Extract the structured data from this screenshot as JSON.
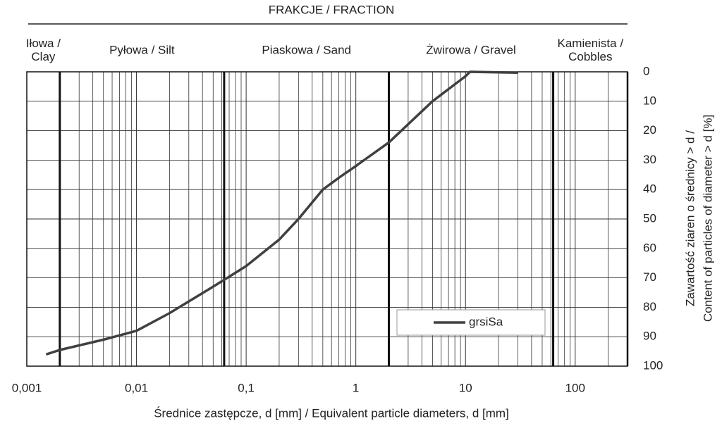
{
  "chart_data": {
    "type": "line",
    "title": "FRAKCJE / FRACTION",
    "xlabel": "Średnice zastępcze, d [mm] / Equivalent particle diameters, d [mm]",
    "ylabel": [
      "Zawartość ziaren o średnicy > d /",
      "Content of particles of diameter > d [%]"
    ],
    "fractions": [
      {
        "lines": [
          "Iłowa /",
          "Clay"
        ],
        "from": 0.001,
        "to": 0.002
      },
      {
        "lines": [
          "Pyłowa / Silt"
        ],
        "from": 0.002,
        "to": 0.063
      },
      {
        "lines": [
          "Piaskowa / Sand"
        ],
        "from": 0.063,
        "to": 2
      },
      {
        "lines": [
          "Żwirowa / Gravel"
        ],
        "from": 2,
        "to": 63
      },
      {
        "lines": [
          "Kamienista /",
          "Cobbles"
        ],
        "from": 63,
        "to": 300
      }
    ],
    "boundaries": [
      0.002,
      0.063,
      2,
      63
    ],
    "x": [
      0.0015,
      0.002,
      0.005,
      0.01,
      0.02,
      0.05,
      0.1,
      0.2,
      0.3,
      0.5,
      0.7,
      1,
      2,
      5,
      10,
      11,
      30
    ],
    "series": [
      {
        "name": "grsiSa",
        "color": "#404040",
        "values": [
          96,
          94.5,
          91,
          88,
          82,
          73,
          66,
          57,
          50,
          40,
          36,
          32,
          24,
          10,
          1.5,
          0,
          0.3
        ]
      }
    ],
    "xlog": true,
    "xlim": [
      0.001,
      300
    ],
    "xticks": [
      {
        "value": 0.001,
        "label": "0,001"
      },
      {
        "value": 0.01,
        "label": "0,01"
      },
      {
        "value": 0.1,
        "label": "0,1"
      },
      1,
      10,
      100
    ],
    "xminorticks": [
      0.002,
      0.003,
      0.004,
      0.005,
      0.006,
      0.007,
      0.008,
      0.009,
      0.02,
      0.03,
      0.04,
      0.05,
      0.06,
      0.07,
      0.08,
      0.09,
      0.2,
      0.3,
      0.4,
      0.5,
      0.6,
      0.7,
      0.8,
      0.9,
      2,
      3,
      4,
      5,
      6,
      7,
      8,
      9,
      20,
      30,
      40,
      50,
      60,
      70,
      80,
      90,
      200
    ],
    "ylim": [
      0,
      100
    ],
    "y_inverted": true,
    "y_axis_side": "right",
    "yticks": [
      0,
      10,
      20,
      30,
      40,
      50,
      60,
      70,
      80,
      90,
      100
    ],
    "grid": true,
    "legend": "lower right"
  }
}
